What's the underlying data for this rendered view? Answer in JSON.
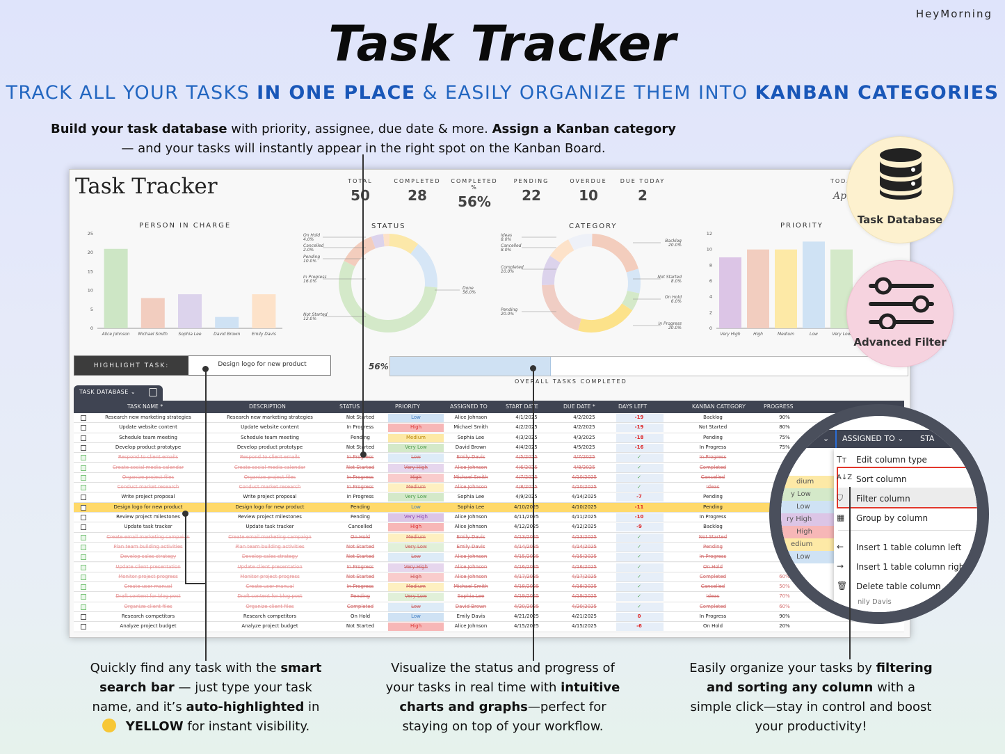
{
  "brand": "HeyMorning",
  "title": "Task Tracker",
  "subtitle": {
    "p1": "TRACK ALL YOUR TASKS ",
    "b1": "IN ONE PLACE",
    "p2": " & EASILY ORGANIZE THEM INTO ",
    "b2": "KANBAN CATEGORIES"
  },
  "intro": {
    "b1": "Build your task database",
    "p1": " with priority, assignee, due date & more. ",
    "b2": "Assign a Kanban category",
    "p2": "— and your tasks will instantly appear in the right spot on the Kanban Board."
  },
  "sheet": {
    "title": "Task Tracker",
    "kpis": [
      {
        "label": "TOTAL",
        "value": "50"
      },
      {
        "label": "COMPLETED",
        "value": "28"
      },
      {
        "label": "COMPLETED %",
        "value": "56%"
      },
      {
        "label": "PENDING",
        "value": "22"
      },
      {
        "label": "OVERDUE",
        "value": "10"
      },
      {
        "label": "DUE TODAY",
        "value": "2"
      }
    ],
    "today_label": "TODA",
    "today_value": "Apr",
    "highlight_label": "HIGHLIGHT TASK:",
    "highlight_value": "Design logo for new product",
    "progress_pct": "56%",
    "progress_fraction": 0.56,
    "progress_caption": "OVERALL TASKS COMPLETED",
    "tab_label": "TASK DATABASE",
    "headers": [
      "TASK NAME *",
      "DESCRIPTION",
      "STATUS",
      "PRIORITY",
      "ASSIGNED TO",
      "START DATE",
      "DUE DATE *",
      "DAYS LEFT",
      "KANBAN CATEGORY",
      "PROGRESS"
    ],
    "rows": [
      {
        "name": "Research new marketing strategies",
        "desc": "Research new marketing strategies",
        "status": "Not Started",
        "priority": "Low",
        "assigned": "Alice Johnson",
        "start": "4/1/2025",
        "due": "4/2/2025",
        "days": "-19",
        "kanban": "Backlog",
        "progress": "90%",
        "done": false
      },
      {
        "name": "Update website content",
        "desc": "Update website content",
        "status": "In Progress",
        "priority": "High",
        "assigned": "Michael Smith",
        "start": "4/2/2025",
        "due": "4/2/2025",
        "days": "-19",
        "kanban": "Not Started",
        "progress": "80%",
        "done": false
      },
      {
        "name": "Schedule team meeting",
        "desc": "Schedule team meeting",
        "status": "Pending",
        "priority": "Medium",
        "assigned": "Sophia Lee",
        "start": "4/3/2025",
        "due": "4/3/2025",
        "days": "-18",
        "kanban": "Pending",
        "progress": "75%",
        "done": false
      },
      {
        "name": "Develop product prototype",
        "desc": "Develop product prototype",
        "status": "Not Started",
        "priority": "Very Low",
        "assigned": "David Brown",
        "start": "4/4/2025",
        "due": "4/5/2025",
        "days": "-16",
        "kanban": "In Progress",
        "progress": "75%",
        "done": false
      },
      {
        "name": "Respond to client emails",
        "desc": "Respond to client emails",
        "status": "In Progress",
        "priority": "Low",
        "assigned": "Emily Davis",
        "start": "4/5/2025",
        "due": "4/7/2025",
        "days": "✓",
        "kanban": "In Progress",
        "progress": "",
        "done": true
      },
      {
        "name": "Create social media calendar",
        "desc": "Create social media calendar",
        "status": "Not Started",
        "priority": "Very High",
        "assigned": "Alice Johnson",
        "start": "4/6/2025",
        "due": "4/8/2025",
        "days": "✓",
        "kanban": "Completed",
        "progress": "",
        "done": true
      },
      {
        "name": "Organize project files",
        "desc": "Organize project files",
        "status": "In Progress",
        "priority": "High",
        "assigned": "Michael Smith",
        "start": "4/7/2025",
        "due": "4/10/2025",
        "days": "✓",
        "kanban": "Cancelled",
        "progress": "",
        "done": true
      },
      {
        "name": "Conduct market research",
        "desc": "Conduct market research",
        "status": "In Progress",
        "priority": "Medium",
        "assigned": "Alice Johnson",
        "start": "4/8/2025",
        "due": "4/10/2025",
        "days": "✓",
        "kanban": "Ideas",
        "progress": "",
        "done": true
      },
      {
        "name": "Write project proposal",
        "desc": "Write project proposal",
        "status": "In Progress",
        "priority": "Very Low",
        "assigned": "Sophia Lee",
        "start": "4/9/2025",
        "due": "4/14/2025",
        "days": "-7",
        "kanban": "Pending",
        "progress": "",
        "done": false
      },
      {
        "name": "Design logo for new product",
        "desc": "Design logo for new product",
        "status": "Pending",
        "priority": "Low",
        "assigned": "Sophia Lee",
        "start": "4/10/2025",
        "due": "4/10/2025",
        "days": "-11",
        "kanban": "Pending",
        "progress": "",
        "done": false,
        "hl": true
      },
      {
        "name": "Review project milestones",
        "desc": "Review project milestones",
        "status": "Pending",
        "priority": "Very High",
        "assigned": "Alice Johnson",
        "start": "4/11/2025",
        "due": "4/11/2025",
        "days": "-10",
        "kanban": "In Progress",
        "progress": "",
        "done": false
      },
      {
        "name": "Update task tracker",
        "desc": "Update task tracker",
        "status": "Cancelled",
        "priority": "High",
        "assigned": "Alice Johnson",
        "start": "4/12/2025",
        "due": "4/12/2025",
        "days": "-9",
        "kanban": "Backlog",
        "progress": "",
        "done": false
      },
      {
        "name": "Create email marketing campaign",
        "desc": "Create email marketing campaign",
        "status": "On Hold",
        "priority": "Medium",
        "assigned": "Emily Davis",
        "start": "4/13/2025",
        "due": "4/13/2025",
        "days": "✓",
        "kanban": "Not Started",
        "progress": "",
        "done": true
      },
      {
        "name": "Plan team building activities",
        "desc": "Plan team building activities",
        "status": "Not Started",
        "priority": "Very Low",
        "assigned": "Emily Davis",
        "start": "4/14/2025",
        "due": "4/14/2025",
        "days": "✓",
        "kanban": "Pending",
        "progress": "",
        "done": true
      },
      {
        "name": "Develop sales strategy",
        "desc": "Develop sales strategy",
        "status": "Not Started",
        "priority": "Low",
        "assigned": "Alice Johnson",
        "start": "4/15/2025",
        "due": "4/15/2025",
        "days": "✓",
        "kanban": "In Progress",
        "progress": "",
        "done": true
      },
      {
        "name": "Update client presentation",
        "desc": "Update client presentation",
        "status": "In Progress",
        "priority": "Very High",
        "assigned": "Alice Johnson",
        "start": "4/16/2025",
        "due": "4/16/2025",
        "days": "✓",
        "kanban": "On Hold",
        "progress": "",
        "done": true
      },
      {
        "name": "Monitor project progress",
        "desc": "Monitor project progress",
        "status": "Not Started",
        "priority": "High",
        "assigned": "Alice Johnson",
        "start": "4/17/2025",
        "due": "4/17/2025",
        "days": "✓",
        "kanban": "Completed",
        "progress": "60%",
        "done": true
      },
      {
        "name": "Create user manual",
        "desc": "Create user manual",
        "status": "In Progress",
        "priority": "Medium",
        "assigned": "Michael Smith",
        "start": "4/18/2025",
        "due": "4/18/2025",
        "days": "✓",
        "kanban": "Cancelled",
        "progress": "50%",
        "done": true
      },
      {
        "name": "Draft content for blog post",
        "desc": "Draft content for blog post",
        "status": "Pending",
        "priority": "Very Low",
        "assigned": "Sophia Lee",
        "start": "4/19/2025",
        "due": "4/19/2025",
        "days": "✓",
        "kanban": "Ideas",
        "progress": "70%",
        "done": true
      },
      {
        "name": "Organize client files",
        "desc": "Organize client files",
        "status": "Completed",
        "priority": "Low",
        "assigned": "David Brown",
        "start": "4/20/2025",
        "due": "4/20/2025",
        "days": "✓",
        "kanban": "Completed",
        "progress": "60%",
        "done": true
      },
      {
        "name": "Research competitors",
        "desc": "Research competitors",
        "status": "On Hold",
        "priority": "Low",
        "assigned": "Emily Davis",
        "start": "4/21/2025",
        "due": "4/21/2025",
        "days": "0",
        "kanban": "In Progress",
        "progress": "90%",
        "done": false
      },
      {
        "name": "Analyze project budget",
        "desc": "Analyze project budget",
        "status": "Not Started",
        "priority": "High",
        "assigned": "Alice Johnson",
        "start": "4/15/2025",
        "due": "4/15/2025",
        "days": "-6",
        "kanban": "On Hold",
        "progress": "20%",
        "done": false
      }
    ]
  },
  "charts": {
    "person": {
      "title": "PERSON IN CHARGE"
    },
    "status": {
      "title": "STATUS"
    },
    "category": {
      "title": "CATEGORY"
    },
    "priority": {
      "title": "PRIORITY"
    }
  },
  "chart_data": [
    {
      "type": "bar",
      "title": "PERSON IN CHARGE",
      "categories": [
        "Alice Johnson",
        "Michael Smith",
        "Sophia Lee",
        "David Brown",
        "Emily Davis"
      ],
      "values": [
        21,
        8,
        9,
        3,
        9
      ],
      "ylim": [
        0,
        25
      ],
      "yticks": [
        "25",
        "20",
        "15",
        "10",
        "5",
        "0"
      ],
      "colors": [
        "#cde6c5",
        "#f2cdbf",
        "#dcd3ec",
        "#cfe2f4",
        "#fde2c9"
      ]
    },
    {
      "type": "pie",
      "title": "STATUS",
      "labels": [
        "On Hold",
        "Cancelled",
        "Pending",
        "In Progress",
        "Done",
        "Not Started"
      ],
      "pct_labels": [
        "4.0%",
        "2.0%",
        "10.0%",
        "16.0%",
        "56.0%",
        "12.0%"
      ],
      "values": [
        4,
        2,
        10,
        16,
        56,
        12
      ],
      "colors": [
        "#dcd3ec",
        "#fde2c9",
        "#fce8a9",
        "#d6e6f6",
        "#d4e9c9",
        "#f3cdbd"
      ]
    },
    {
      "type": "pie",
      "title": "CATEGORY",
      "labels": [
        "Backlog",
        "Not Started",
        "On Hold",
        "In Progress",
        "Pending",
        "Completed",
        "Cancelled",
        "Ideas"
      ],
      "pct_labels": [
        "20.0%",
        "8.0%",
        "6.0%",
        "20.0%",
        "20.0%",
        "10.0%",
        "8.0%",
        "8.0%"
      ],
      "values": [
        20,
        8,
        6,
        20,
        20,
        10,
        8,
        8
      ],
      "colors": [
        "#f3cdbd",
        "#d6e6f6",
        "#d4e9c9",
        "#fce28a",
        "#f0cdc4",
        "#dcd3ec",
        "#fde2c9",
        "#eef1f8"
      ]
    },
    {
      "type": "bar",
      "title": "PRIORITY",
      "categories": [
        "Very High",
        "High",
        "Medium",
        "Low",
        "Very Low"
      ],
      "values": [
        9,
        10,
        10,
        11,
        10
      ],
      "ylim": [
        0,
        12
      ],
      "yticks": [
        "12",
        "10",
        "8",
        "6",
        "4",
        "2",
        "0"
      ],
      "colors": [
        "#dcc5e6",
        "#f2cdbf",
        "#fde9a6",
        "#cfe2f4",
        "#d4e9c9"
      ]
    }
  ],
  "badges": {
    "db": "Task Database",
    "filter": "Advanced Filter"
  },
  "menu": {
    "col1": "ASSIGNED TO",
    "col2": "STA",
    "items": [
      "Edit column type",
      "Sort column",
      "Filter column",
      "Group by column",
      "Insert 1 table column left",
      "Insert 1 table column right",
      "Delete table column"
    ],
    "peek": [
      "dium",
      "y Low",
      "Low",
      "ry High",
      "High",
      "edium",
      "Low"
    ],
    "bottom": "nily Davis"
  },
  "callouts": {
    "left": {
      "p1": "Quickly find any task with the ",
      "b1": "smart search bar",
      "p2": " — just type your task name, and it’s ",
      "b2": "auto-highlighted",
      "p3": " in ",
      "b3": "YELLOW",
      "p4": " for instant visibility."
    },
    "mid": {
      "p1": "Visualize the status and progress of your tasks in real time with ",
      "b1": "intuitive charts and graphs",
      "p2": "—perfect for staying on top of your workflow."
    },
    "right": {
      "p1": "Easily organize your tasks by ",
      "b1": "filtering and sorting any column",
      "p2": " with a simple click—stay in control and boost your productivity!"
    }
  },
  "colors": {
    "accent": "#2266c0",
    "yellow": "#ffd96a",
    "dark": "#3f4452"
  }
}
